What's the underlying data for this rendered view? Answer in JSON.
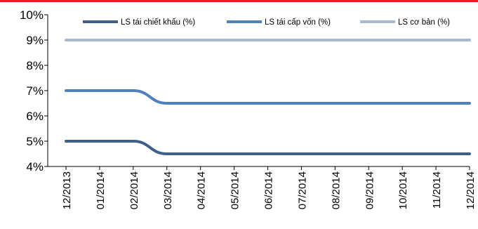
{
  "colors": {
    "accent_bar": "#e02020"
  },
  "chart_data": {
    "type": "line",
    "title": "",
    "xlabel": "",
    "ylabel": "",
    "categories": [
      "12/2013",
      "01/2014",
      "02/2014",
      "03/2014",
      "04/2014",
      "05/2014",
      "06/2014",
      "07/2014",
      "08/2014",
      "09/2014",
      "10/2014",
      "11/2014",
      "12/2014"
    ],
    "ylim": [
      4,
      10
    ],
    "yticks": [
      4,
      5,
      6,
      7,
      8,
      9,
      10
    ],
    "ytick_labels": [
      "4%",
      "5%",
      "6%",
      "7%",
      "8%",
      "9%",
      "10%"
    ],
    "grid": false,
    "legend": "top",
    "series": [
      {
        "name": "LS tái chiết khấu (%)",
        "color": "#3e5f8a",
        "values": [
          5,
          5,
          5,
          4.5,
          4.5,
          4.5,
          4.5,
          4.5,
          4.5,
          4.5,
          4.5,
          4.5,
          4.5
        ]
      },
      {
        "name": "LS tái cấp vốn (%)",
        "color": "#4f81bd",
        "values": [
          7,
          7,
          7,
          6.5,
          6.5,
          6.5,
          6.5,
          6.5,
          6.5,
          6.5,
          6.5,
          6.5,
          6.5
        ]
      },
      {
        "name": "LS cơ bản (%)",
        "color": "#a6b8d4",
        "values": [
          9,
          9,
          9,
          9,
          9,
          9,
          9,
          9,
          9,
          9,
          9,
          9,
          9
        ]
      }
    ]
  }
}
